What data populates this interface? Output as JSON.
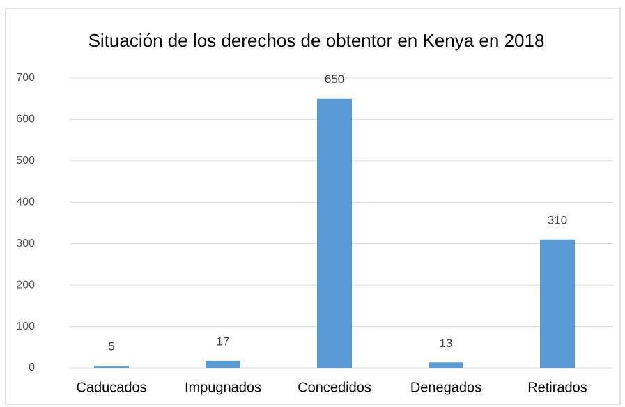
{
  "chart_data": {
    "type": "bar",
    "title": "Situación de los derechos de obtentor en Kenya en 2018",
    "categories": [
      "Caducados",
      "Impugnados",
      "Concedidos",
      "Denegados",
      "Retirados"
    ],
    "values": [
      5,
      17,
      650,
      13,
      310
    ],
    "color": "#5b9bd5",
    "ylim": [
      0,
      700
    ],
    "yticks": [
      0,
      100,
      200,
      300,
      400,
      500,
      600,
      700
    ],
    "grid": true
  }
}
